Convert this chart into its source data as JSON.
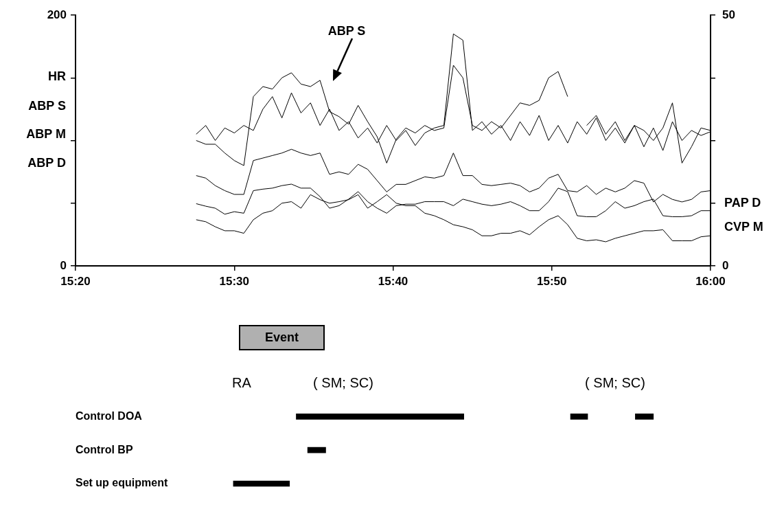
{
  "chart_data": [
    {
      "type": "line",
      "x": [
        15.46,
        15.47,
        15.48,
        15.49,
        15.5,
        15.51,
        15.52,
        15.53,
        15.54,
        15.55,
        15.56,
        15.57,
        15.58,
        15.59,
        15.6,
        15.61,
        15.62,
        15.63,
        15.64,
        15.65,
        15.66,
        15.67,
        15.68,
        15.69,
        15.7,
        15.71,
        15.72,
        15.73,
        15.74,
        15.75,
        15.76,
        15.77,
        15.78,
        15.79,
        15.8,
        15.81,
        15.82,
        15.83,
        15.84,
        15.85,
        15.86,
        15.87,
        15.88,
        15.89,
        15.9,
        15.91,
        15.92,
        15.93,
        15.94,
        15.95,
        15.96,
        15.97,
        15.98,
        15.99,
        16.0
      ],
      "series": [
        {
          "color": "#000000",
          "values": [
            105,
            112,
            100,
            110,
            106,
            112,
            108,
            125,
            135,
            118,
            138,
            122,
            130,
            112,
            125,
            108,
            115,
            102,
            110,
            98,
            112,
            100,
            108,
            96,
            106,
            110,
            112,
            185,
            180,
            108,
            115,
            105,
            112,
            100,
            115,
            104,
            120,
            100,
            112,
            98,
            115,
            105,
            118,
            100,
            110,
            98,
            112,
            95,
            110,
            92,
            115,
            100,
            108,
            104,
            107
          ]
        },
        {
          "color": "#000000",
          "values": [
            100,
            97,
            97,
            90,
            84,
            80,
            135,
            143,
            141,
            150,
            154,
            145,
            143,
            148,
            123,
            119,
            113,
            128,
            115,
            103,
            82,
            101,
            110,
            106,
            112,
            108,
            110,
            160,
            150,
            112,
            108,
            115,
            110,
            120,
            130,
            128,
            132,
            150,
            155,
            135,
            null,
            112,
            120,
            105,
            115,
            100,
            112,
            108,
            100,
            110,
            130,
            82,
            95,
            110,
            108
          ]
        },
        {
          "color": "#000000",
          "values": [
            72,
            70,
            64,
            60,
            57,
            57,
            84,
            86,
            88,
            90,
            93,
            90,
            88,
            90,
            73,
            75,
            73,
            81,
            77,
            68,
            59,
            65,
            65,
            68,
            71,
            70,
            72,
            90,
            72,
            72,
            65,
            64,
            65,
            66,
            64,
            59,
            62,
            70,
            73,
            60,
            59,
            64,
            57,
            62,
            59,
            62,
            68,
            66,
            51,
            57,
            53,
            51,
            53,
            59,
            60
          ]
        },
        {
          "color": "#000000",
          "axis": "y2",
          "values": [
            12.4,
            11.9,
            11.5,
            10.3,
            10.8,
            10.5,
            15,
            15.3,
            15.5,
            16,
            16.3,
            15.5,
            15.5,
            13.8,
            11.5,
            12,
            13.3,
            14.8,
            12.8,
            11.5,
            10.5,
            12,
            12.3,
            12.3,
            12.8,
            12.8,
            12.8,
            12,
            13.3,
            12.8,
            12.3,
            12,
            12.3,
            12.8,
            12,
            11,
            11,
            12.8,
            15.5,
            14.8,
            10,
            9.8,
            9.8,
            11,
            12.8,
            11.5,
            12,
            12.8,
            13.3,
            10,
            9.8,
            9.8,
            10,
            11,
            11
          ]
        },
        {
          "color": "#000000",
          "axis": "y2",
          "values": [
            9.2,
            8.8,
            7.8,
            7,
            7,
            6.5,
            9.2,
            10.5,
            11,
            12.5,
            12.8,
            11.5,
            14.2,
            13.2,
            12.5,
            12.8,
            13.2,
            14.2,
            11.5,
            12.8,
            14.2,
            12.5,
            12,
            12,
            10.5,
            10,
            9.2,
            8.2,
            7.8,
            7.2,
            6,
            6,
            6.5,
            6.5,
            7,
            6.2,
            7.8,
            9.2,
            10,
            8.2,
            5.5,
            5,
            5.2,
            4.8,
            5.5,
            6,
            6.5,
            7,
            7,
            7.2,
            5,
            5,
            5,
            5.8,
            6
          ]
        }
      ],
      "xlim": [
        15.3333,
        16
      ],
      "xticks": [
        {
          "value": 15.3333,
          "label": "15:20"
        },
        {
          "value": 15.5,
          "label": "15:30"
        },
        {
          "value": 15.6667,
          "label": "15:40"
        },
        {
          "value": 15.8333,
          "label": "15:50"
        },
        {
          "value": 16,
          "label": "16:00"
        }
      ],
      "ylim": [
        0,
        200
      ],
      "yticks": [
        0,
        {
          "value": 50,
          "label": null
        },
        {
          "value": 100,
          "label": null
        },
        {
          "value": 150,
          "label": null
        },
        200
      ],
      "y2lim": [
        0,
        50
      ],
      "y2ticks": [
        0,
        {
          "value": 12.5,
          "label": null
        },
        {
          "value": 25,
          "label": null
        },
        {
          "value": 37.5,
          "label": null
        },
        50
      ],
      "annotations": [
        "HR",
        "ABP S",
        "ABP M",
        "ABP D",
        "PAP D",
        "CVP M",
        "ABP S"
      ],
      "grid": false,
      "legend": false
    },
    {
      "type": "bar",
      "orientation": "horizontal",
      "title": "Event",
      "categories": [
        "Control DOA",
        "Control BP",
        "Set up equipment"
      ],
      "series": [
        {
          "color": "#000000",
          "base": [
            15.565,
            15.577,
            15.499
          ],
          "values": [
            0.176,
            0.019,
            0.059
          ]
        },
        {
          "color": "#000000",
          "base": [
            15.853,
            null,
            null
          ],
          "values": [
            0.018,
            null,
            null
          ]
        },
        {
          "color": "#000000",
          "base": [
            15.921,
            null,
            null
          ],
          "values": [
            0.019,
            null,
            null
          ]
        }
      ],
      "xlim": [
        15.3333,
        16
      ],
      "annotations": [
        "RA",
        "( SM; SC)",
        "( SM; SC)"
      ],
      "tick_labels": "y",
      "legend": false
    }
  ]
}
